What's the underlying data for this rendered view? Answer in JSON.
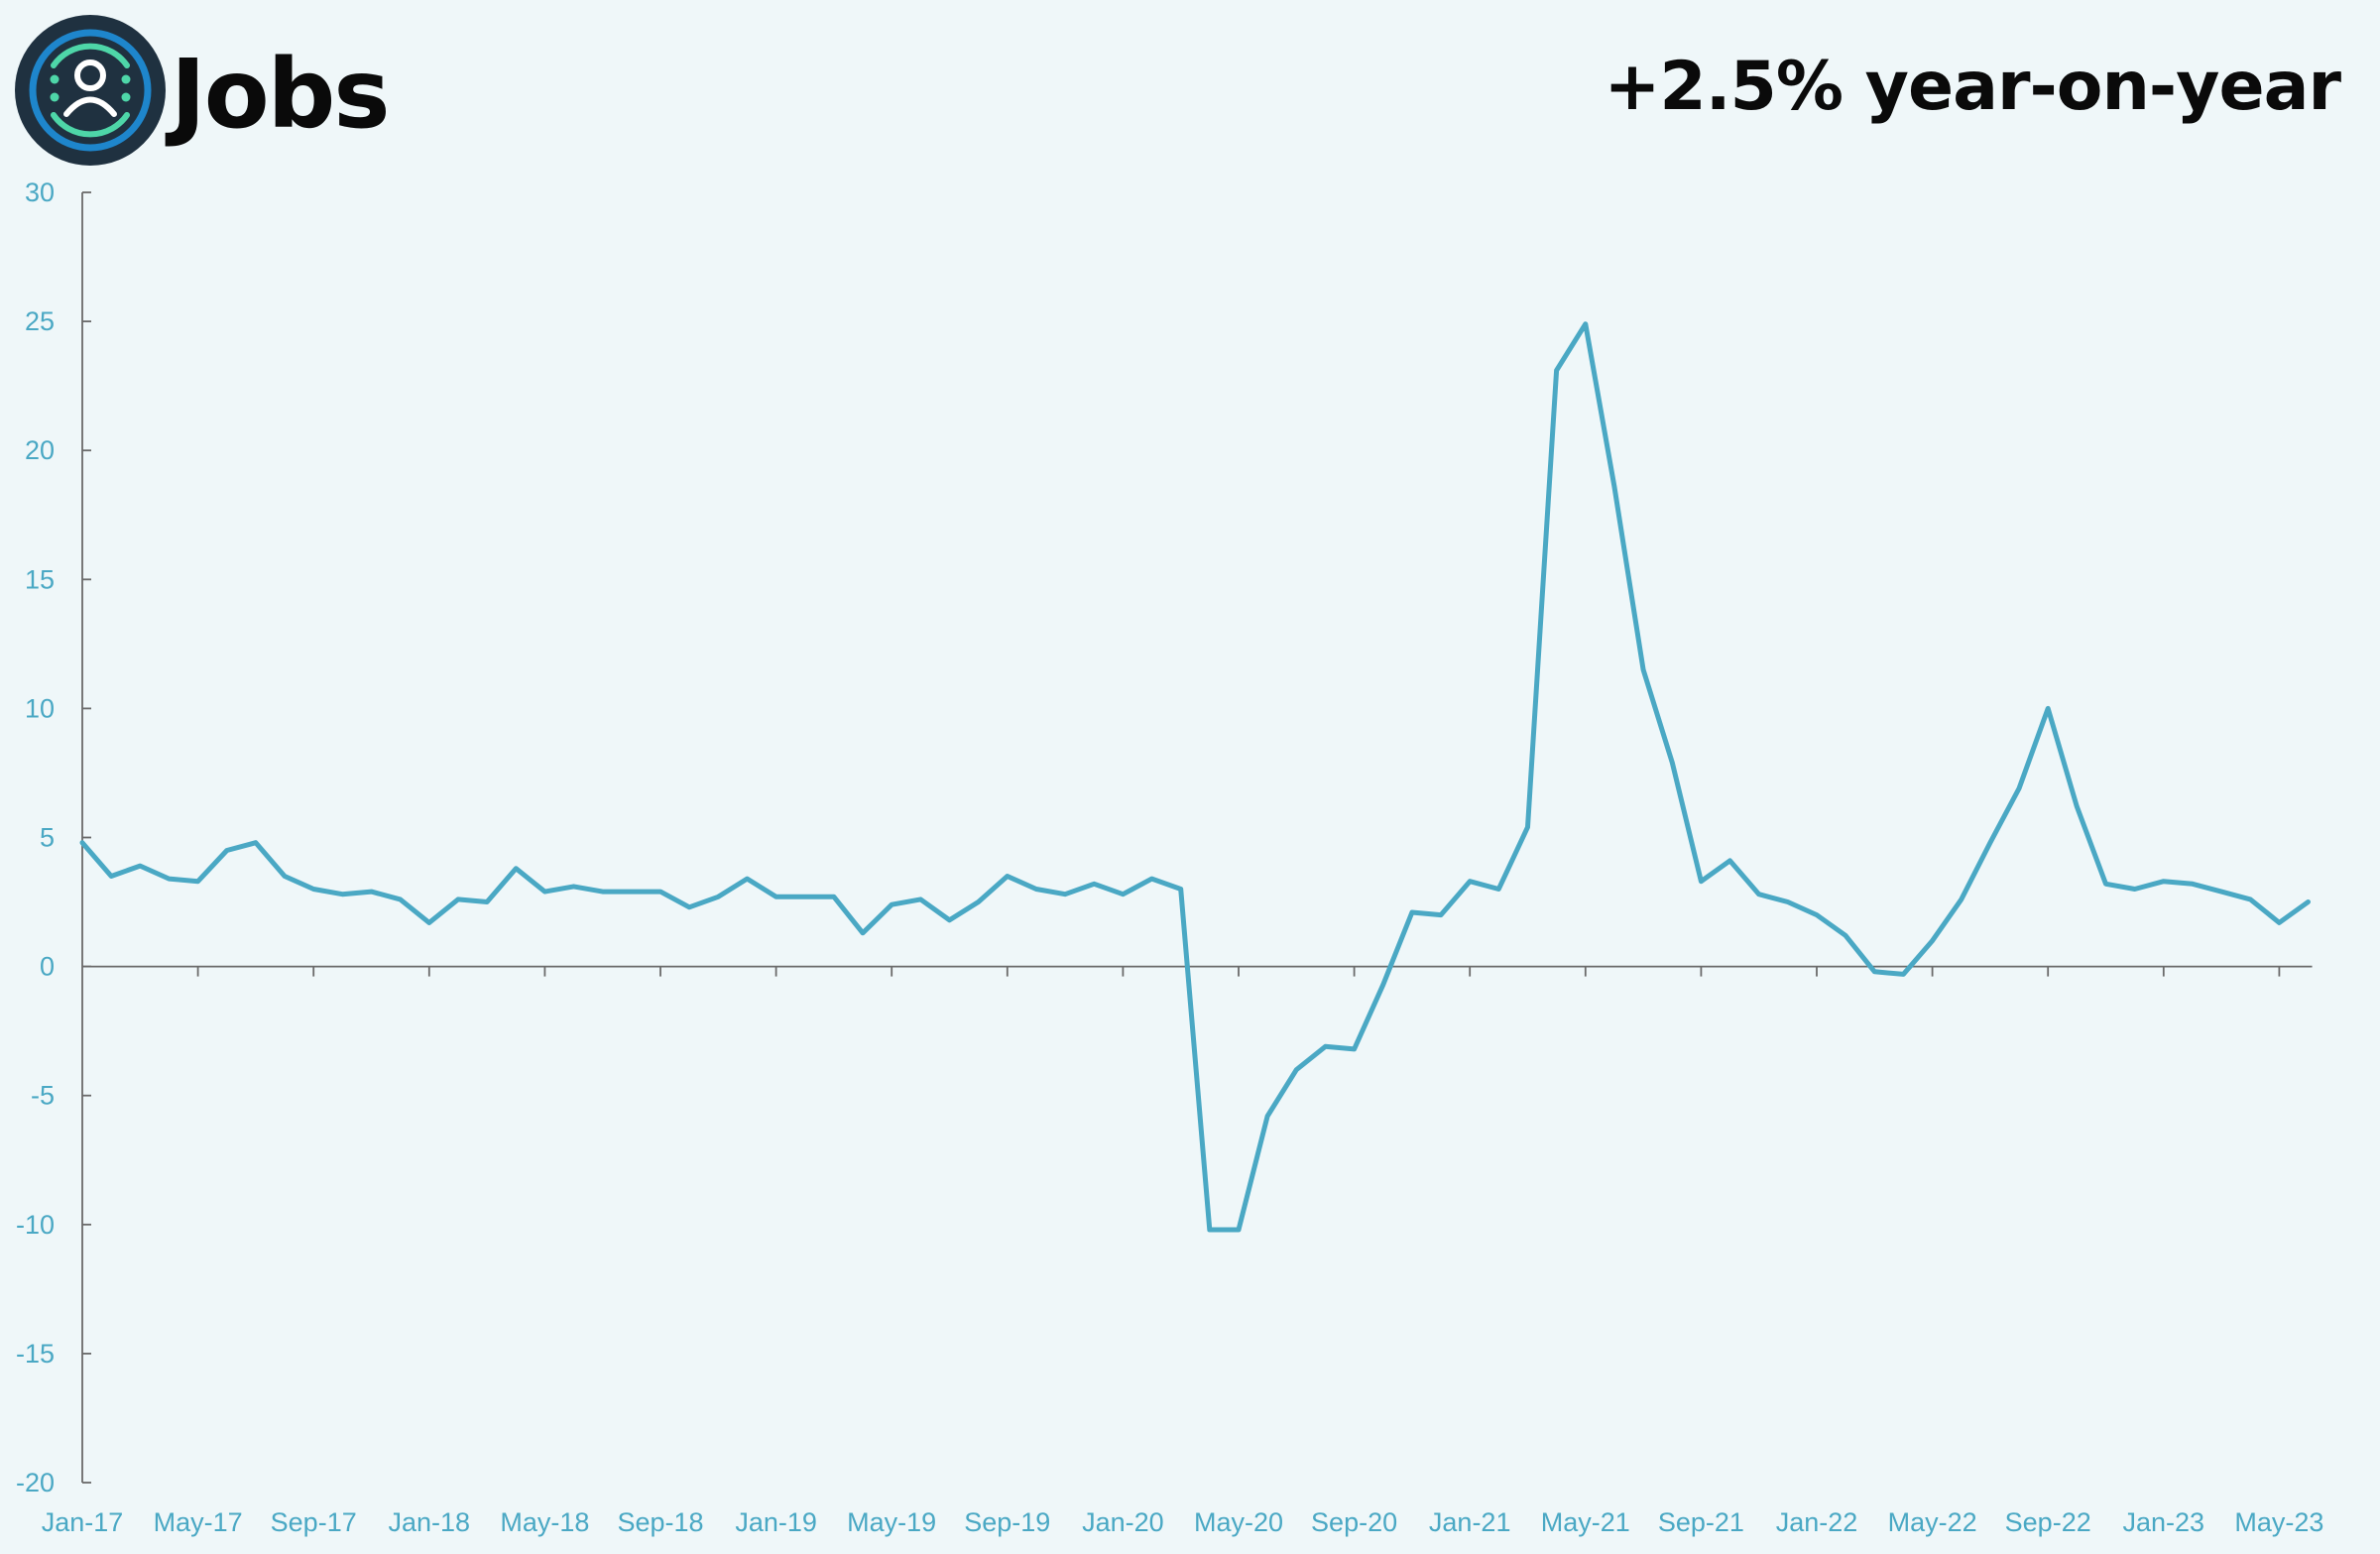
{
  "app": {
    "title": "Jobs",
    "icon": "user-circle-icon"
  },
  "headline": "+2.5% year-on-year",
  "colors": {
    "line": "#4aa8c4",
    "axis": "#6a6a6a",
    "label": "#4aa8c4",
    "background": "#eff7f9"
  },
  "chart_data": {
    "type": "line",
    "title": "",
    "xlabel": "",
    "ylabel": "",
    "ylim": [
      -20,
      30
    ],
    "yticks": [
      30,
      25,
      20,
      15,
      10,
      5,
      0,
      -5,
      -10,
      -15,
      -20
    ],
    "xtick_labels": [
      "Jan-17",
      "May-17",
      "Sep-17",
      "Jan-18",
      "May-18",
      "Sep-18",
      "Jan-19",
      "May-19",
      "Sep-19",
      "Jan-20",
      "May-20",
      "Sep-20",
      "Jan-21",
      "May-21",
      "Sep-21",
      "Jan-22",
      "May-22",
      "Sep-22",
      "Jan-23",
      "May-23"
    ],
    "grid": false,
    "series": [
      {
        "x": [
          "Jan-17",
          "Feb-17",
          "Mar-17",
          "Apr-17",
          "May-17",
          "Jun-17",
          "Jul-17",
          "Aug-17",
          "Sep-17",
          "Oct-17",
          "Nov-17",
          "Dec-17",
          "Jan-18",
          "Feb-18",
          "Mar-18",
          "Apr-18",
          "May-18",
          "Jun-18",
          "Jul-18",
          "Aug-18",
          "Sep-18",
          "Oct-18",
          "Nov-18",
          "Dec-18",
          "Jan-19",
          "Feb-19",
          "Mar-19",
          "Apr-19",
          "May-19",
          "Jun-19",
          "Jul-19",
          "Aug-19",
          "Sep-19",
          "Oct-19",
          "Nov-19",
          "Dec-19",
          "Jan-20",
          "Feb-20",
          "Mar-20",
          "Apr-20",
          "May-20",
          "Jun-20",
          "Jul-20",
          "Aug-20",
          "Sep-20",
          "Oct-20",
          "Nov-20",
          "Dec-20",
          "Jan-21",
          "Feb-21",
          "Mar-21",
          "Apr-21",
          "May-21",
          "Jun-21",
          "Jul-21",
          "Aug-21",
          "Sep-21",
          "Oct-21",
          "Nov-21",
          "Dec-21",
          "Jan-22",
          "Feb-22",
          "Mar-22",
          "Apr-22",
          "May-22",
          "Jun-22",
          "Jul-22",
          "Aug-22",
          "Sep-22",
          "Oct-22",
          "Nov-22",
          "Dec-22",
          "Jan-23",
          "Feb-23",
          "Mar-23",
          "Apr-23",
          "May-23",
          "Jun-23"
        ],
        "values": [
          4.8,
          3.5,
          3.9,
          3.4,
          3.3,
          4.5,
          4.8,
          3.5,
          3.0,
          2.8,
          2.9,
          2.6,
          1.7,
          2.6,
          2.5,
          3.8,
          2.9,
          3.1,
          2.9,
          2.9,
          2.9,
          2.3,
          2.7,
          3.4,
          2.7,
          2.7,
          2.7,
          1.3,
          2.4,
          2.6,
          1.8,
          2.5,
          3.5,
          3.0,
          2.8,
          3.2,
          2.8,
          3.4,
          3.0,
          -10.2,
          -10.2,
          -5.8,
          -4.0,
          -3.1,
          -3.2,
          -0.7,
          2.1,
          2.0,
          3.3,
          3.0,
          5.4,
          23.1,
          24.9,
          18.6,
          11.5,
          7.9,
          3.3,
          4.1,
          2.8,
          2.5,
          2.0,
          1.2,
          -0.2,
          -0.3,
          1.0,
          2.6,
          4.8,
          6.9,
          10.0,
          6.2,
          3.2,
          3.0,
          3.3,
          3.2,
          2.9,
          2.6,
          1.7,
          2.5
        ]
      }
    ]
  }
}
